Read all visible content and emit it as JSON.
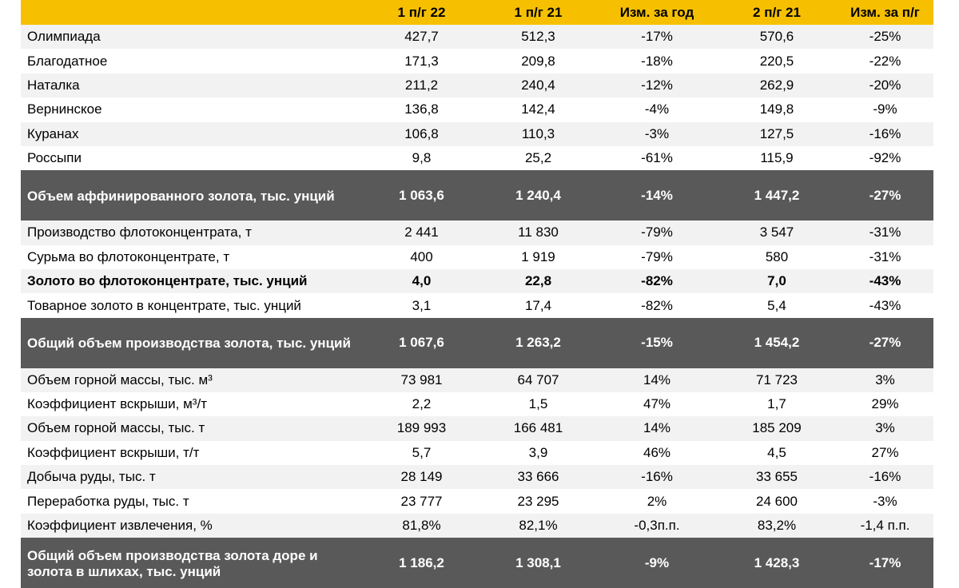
{
  "table": {
    "headers": [
      "",
      "1 п/г 22",
      "1 п/г 21",
      "Изм. за год",
      "2 п/г 21",
      "Изм. за п/г"
    ],
    "rows": [
      {
        "kind": "normal",
        "cells": [
          "Олимпиада",
          "427,7",
          "512,3",
          "-17%",
          "570,6",
          "-25%"
        ]
      },
      {
        "kind": "normal",
        "cells": [
          "Благодатное",
          "171,3",
          "209,8",
          "-18%",
          "220,5",
          "-22%"
        ]
      },
      {
        "kind": "normal",
        "cells": [
          "Наталка",
          "211,2",
          "240,4",
          "-12%",
          "262,9",
          "-20%"
        ]
      },
      {
        "kind": "normal",
        "cells": [
          "Вернинское",
          "136,8",
          "142,4",
          "-4%",
          "149,8",
          "-9%"
        ]
      },
      {
        "kind": "normal",
        "cells": [
          "Куранах",
          "106,8",
          "110,3",
          "-3%",
          "127,5",
          "-16%"
        ]
      },
      {
        "kind": "normal",
        "cells": [
          "Россыпи",
          "9,8",
          "25,2",
          "-61%",
          "115,9",
          "-92%"
        ]
      },
      {
        "kind": "total",
        "cells": [
          "Объем аффинированного золота, тыс. унций",
          "1 063,6",
          "1 240,4",
          "-14%",
          "1 447,2",
          "-27%"
        ]
      },
      {
        "kind": "normal",
        "cells": [
          "Производство флотоконцентрата, т",
          "2 441",
          "11 830",
          "-79%",
          "3 547",
          "-31%"
        ]
      },
      {
        "kind": "normal",
        "cells": [
          "Сурьма во флотоконцентрате, т",
          "400",
          "1 919",
          "-79%",
          "580",
          "-31%"
        ]
      },
      {
        "kind": "bold",
        "cells": [
          "Золото во флотоконцентрате, тыс. унций",
          "4,0",
          "22,8",
          "-82%",
          "7,0",
          "-43%"
        ]
      },
      {
        "kind": "normal",
        "cells": [
          "Товарное золото в концентрате, тыс. унций",
          "3,1",
          "17,4",
          "-82%",
          "5,4",
          "-43%"
        ]
      },
      {
        "kind": "total",
        "cells": [
          "Общий объем производства золота, тыс. унций",
          "1 067,6",
          "1 263,2",
          "-15%",
          "1 454,2",
          "-27%"
        ]
      },
      {
        "kind": "normal",
        "cells": [
          "Объем горной массы, тыс. м³",
          "73 981",
          "64 707",
          "14%",
          "71 723",
          "3%"
        ]
      },
      {
        "kind": "normal",
        "cells": [
          "Коэффициент вскрыши, м³/т",
          "2,2",
          "1,5",
          "47%",
          "1,7",
          "29%"
        ]
      },
      {
        "kind": "normal",
        "cells": [
          "Объем горной массы, тыс. т",
          "189 993",
          "166 481",
          "14%",
          "185 209",
          "3%"
        ]
      },
      {
        "kind": "normal",
        "cells": [
          "Коэффициент вскрыши, т/т",
          "5,7",
          "3,9",
          "46%",
          "4,5",
          "27%"
        ]
      },
      {
        "kind": "normal",
        "cells": [
          "Добыча руды, тыс. т",
          "28 149",
          "33 666",
          "-16%",
          "33 655",
          "-16%"
        ]
      },
      {
        "kind": "normal",
        "cells": [
          "Переработка руды, тыс. т",
          "23 777",
          "23 295",
          "2%",
          "24 600",
          "-3%"
        ]
      },
      {
        "kind": "normal",
        "cells": [
          "Коэффициент извлечения, %",
          "81,8%",
          "82,1%",
          "-0,3п.п.",
          "83,2%",
          "-1,4 п.п."
        ]
      },
      {
        "kind": "total",
        "cells": [
          "Общий объем производства золота доре и золота в шлихах, тыс. унций",
          "1 186,2",
          "1 308,1",
          "-9%",
          "1 428,3",
          "-17%"
        ]
      }
    ]
  }
}
